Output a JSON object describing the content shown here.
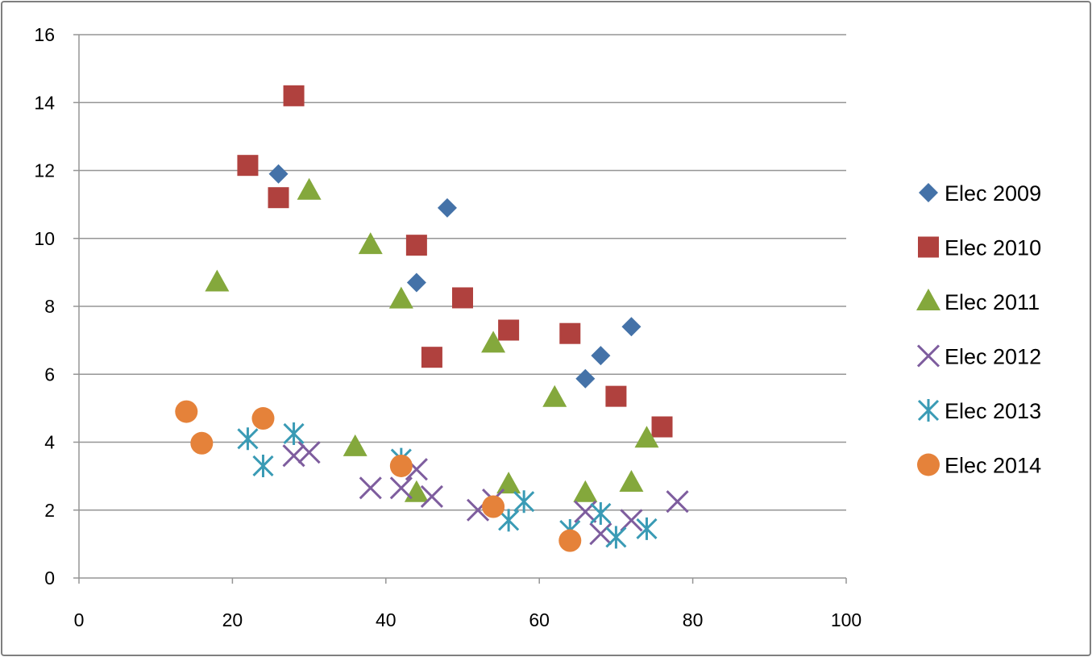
{
  "chart_data": {
    "type": "scatter",
    "title": "",
    "xlabel": "",
    "ylabel": "",
    "xlim": [
      0,
      100
    ],
    "ylim": [
      0,
      16
    ],
    "xticks": [
      0,
      20,
      40,
      60,
      80,
      100
    ],
    "yticks": [
      0,
      2,
      4,
      6,
      8,
      10,
      12,
      14,
      16
    ],
    "grid": "horizontal",
    "legend_position": "right",
    "series": [
      {
        "name": "Elec 2009",
        "marker": "diamond",
        "color": "#4472a8",
        "points": [
          [
            26,
            11.9
          ],
          [
            48,
            10.9
          ],
          [
            44,
            8.7
          ],
          [
            72,
            7.4
          ],
          [
            68,
            6.55
          ],
          [
            66,
            5.87
          ]
        ]
      },
      {
        "name": "Elec 2010",
        "marker": "square",
        "color": "#b0413e",
        "points": [
          [
            22,
            12.15
          ],
          [
            28,
            14.2
          ],
          [
            26,
            11.2
          ],
          [
            44,
            9.8
          ],
          [
            50,
            8.25
          ],
          [
            46,
            6.5
          ],
          [
            56,
            7.3
          ],
          [
            64,
            7.2
          ],
          [
            70,
            5.35
          ],
          [
            76,
            4.45
          ]
        ]
      },
      {
        "name": "Elec 2011",
        "marker": "triangle",
        "color": "#84a83c",
        "points": [
          [
            18,
            8.7
          ],
          [
            30,
            11.4
          ],
          [
            38,
            9.8
          ],
          [
            42,
            8.2
          ],
          [
            54,
            6.9
          ],
          [
            62,
            5.3
          ],
          [
            74,
            4.1
          ],
          [
            72,
            2.8
          ],
          [
            66,
            2.5
          ],
          [
            56,
            2.75
          ],
          [
            44,
            2.5
          ],
          [
            36,
            3.85
          ]
        ]
      },
      {
        "name": "Elec 2012",
        "marker": "x",
        "color": "#7e5d9e",
        "points": [
          [
            28,
            3.6
          ],
          [
            30,
            3.7
          ],
          [
            38,
            2.65
          ],
          [
            42,
            2.65
          ],
          [
            44,
            3.2
          ],
          [
            46,
            2.4
          ],
          [
            52,
            2.0
          ],
          [
            54,
            2.3
          ],
          [
            66,
            1.95
          ],
          [
            68,
            1.3
          ],
          [
            72,
            1.7
          ],
          [
            78,
            2.25
          ]
        ]
      },
      {
        "name": "Elec 2013",
        "marker": "asterisk",
        "color": "#3a9bb5",
        "points": [
          [
            22,
            4.1
          ],
          [
            24,
            3.3
          ],
          [
            28,
            4.25
          ],
          [
            42,
            3.5
          ],
          [
            56,
            1.7
          ],
          [
            58,
            2.25
          ],
          [
            64,
            1.4
          ],
          [
            68,
            1.9
          ],
          [
            70,
            1.2
          ],
          [
            74,
            1.45
          ]
        ]
      },
      {
        "name": "Elec 2014",
        "marker": "circle",
        "color": "#e5823a",
        "points": [
          [
            14,
            4.9
          ],
          [
            16,
            3.97
          ],
          [
            24,
            4.7
          ],
          [
            42,
            3.3
          ],
          [
            54,
            2.1
          ],
          [
            64,
            1.1
          ]
        ]
      }
    ]
  }
}
